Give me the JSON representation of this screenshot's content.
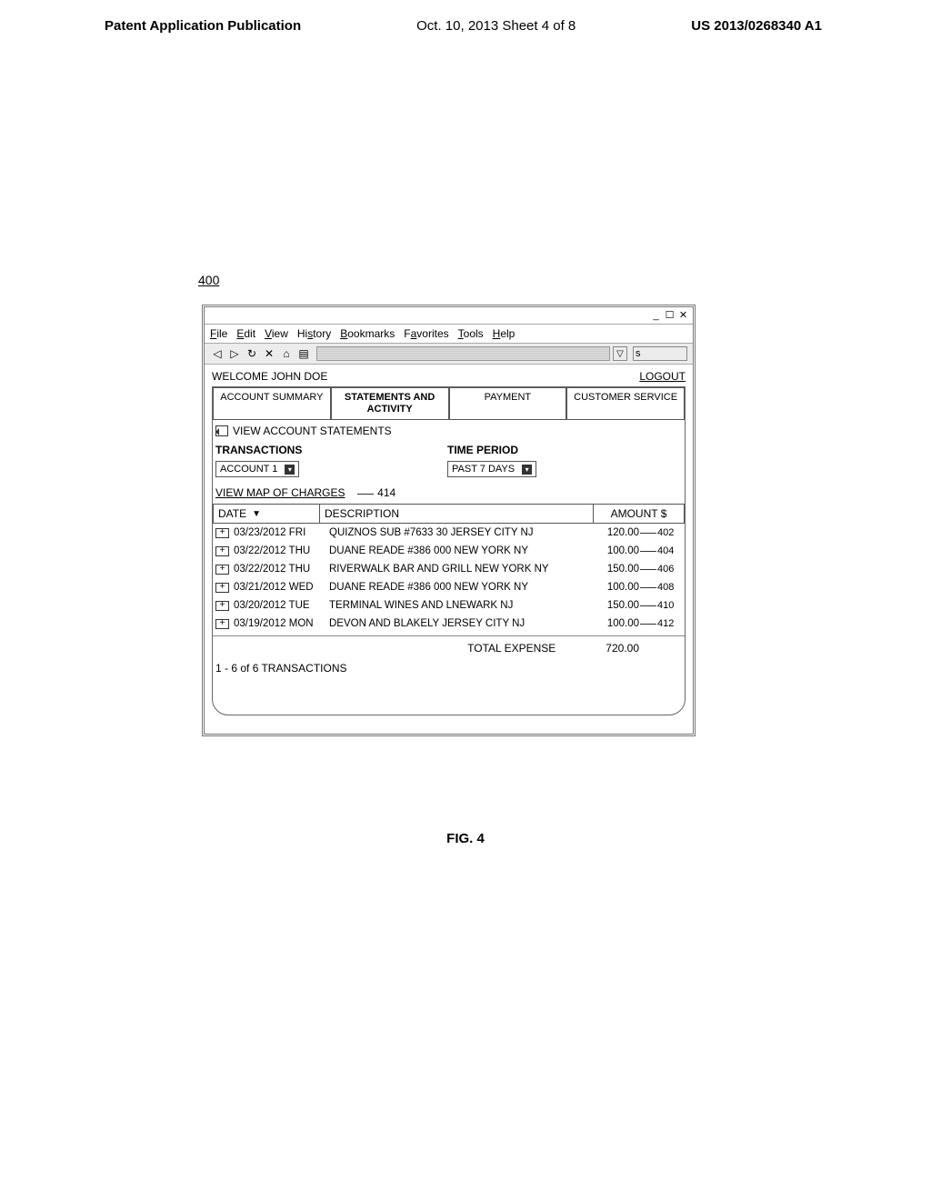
{
  "page_header": {
    "left": "Patent Application Publication",
    "center": "Oct. 10, 2013  Sheet 4 of 8",
    "right": "US 2013/0268340 A1"
  },
  "ref_num": "400",
  "window": {
    "menubar": [
      "File",
      "Edit",
      "View",
      "History",
      "Bookmarks",
      "Favorites",
      "Tools",
      "Help"
    ],
    "menu_underlines": {
      "File": "F",
      "Edit": "E",
      "View": "V",
      "History": "s",
      "Bookmarks": "B",
      "Favorites": "a",
      "Tools": "T",
      "Help": "H"
    },
    "search_box_label": "s"
  },
  "content": {
    "welcome": "WELCOME JOHN DOE",
    "logout": "LOGOUT",
    "tabs": [
      "ACCOUNT SUMMARY",
      "STATEMENTS AND ACTIVITY",
      "PAYMENT",
      "CUSTOMER SERVICE"
    ],
    "active_tab": 1,
    "view_statements": "VIEW ACCOUNT STATEMENTS",
    "filter_headers": {
      "transactions": "TRANSACTIONS",
      "time_period": "TIME PERIOD"
    },
    "account_dd": "ACCOUNT 1",
    "period_dd": "PAST 7 DAYS",
    "map_link": "VIEW MAP OF CHARGES",
    "map_ref": "414",
    "columns": {
      "date": "DATE",
      "description": "DESCRIPTION",
      "amount": "AMOUNT $"
    },
    "rows": [
      {
        "date": "03/23/2012",
        "day": "FRI",
        "desc": "QUIZNOS SUB #7633 30 JERSEY CITY NJ",
        "amount": "120.00",
        "ref": "402"
      },
      {
        "date": "03/22/2012",
        "day": "THU",
        "desc": "DUANE READE  #386 000 NEW YORK NY",
        "amount": "100.00",
        "ref": "404"
      },
      {
        "date": "03/22/2012",
        "day": "THU",
        "desc": "RIVERWALK BAR AND GRILL NEW YORK NY",
        "amount": "150.00",
        "ref": "406"
      },
      {
        "date": "03/21/2012",
        "day": "WED",
        "desc": "DUANE READE  #386 000 NEW YORK NY",
        "amount": "100.00",
        "ref": "408"
      },
      {
        "date": "03/20/2012",
        "day": "TUE",
        "desc": "TERMINAL WINES AND LNEWARK NJ",
        "amount": "150.00",
        "ref": "410"
      },
      {
        "date": "03/19/2012",
        "day": "MON",
        "desc": "DEVON AND BLAKELY JERSEY CITY NJ",
        "amount": "100.00",
        "ref": "412"
      }
    ],
    "total_label": "TOTAL EXPENSE",
    "total_value": "720.00",
    "count": "1 - 6 of 6 TRANSACTIONS"
  },
  "figure_caption": "FIG. 4"
}
